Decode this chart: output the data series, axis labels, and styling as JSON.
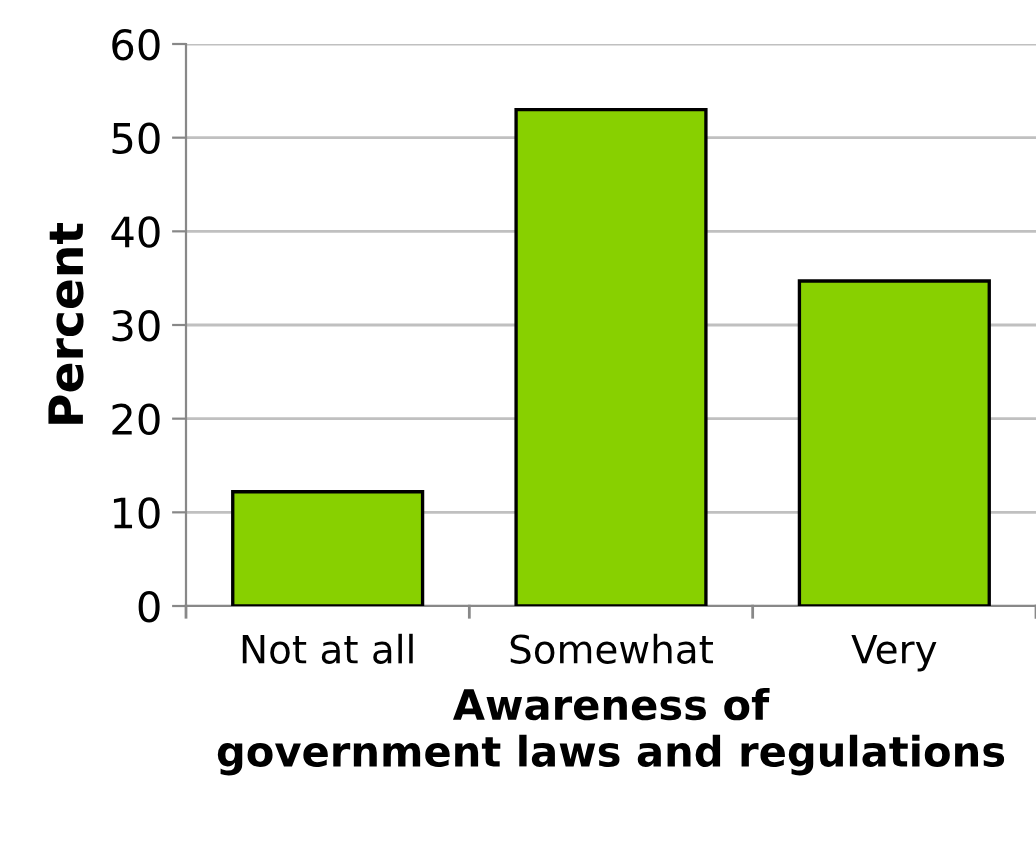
{
  "chart_data": {
    "type": "bar",
    "xlabel": "Awareness of\ngovernment laws and regulations",
    "ylabel": "Percent",
    "categories": [
      "Not at all",
      "Somewhat",
      "Very"
    ],
    "values": [
      12.2,
      53,
      34.7
    ],
    "color": "#88d000",
    "ylim": [
      0,
      60
    ],
    "yticks": [
      0,
      10,
      20,
      30,
      40,
      50,
      60
    ],
    "grid": "y"
  }
}
